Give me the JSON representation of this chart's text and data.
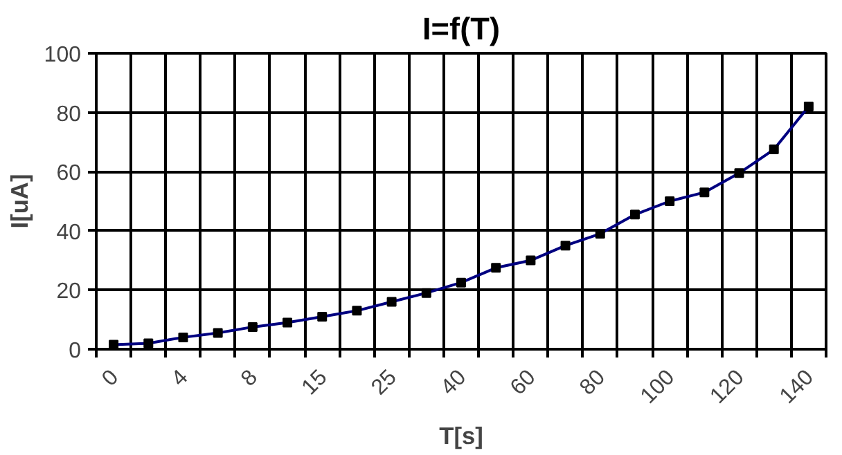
{
  "chart_data": {
    "type": "line",
    "title": "I=f(T)",
    "xlabel": "T[s]",
    "ylabel": "I[uA]",
    "categories": [
      "0",
      null,
      "4",
      null,
      "8",
      null,
      "15",
      null,
      "25",
      null,
      "40",
      null,
      "60",
      null,
      "80",
      null,
      "100",
      null,
      "120",
      null,
      "140"
    ],
    "series": [
      {
        "color": "#000080",
        "values": [
          1.5,
          2,
          4,
          5.5,
          7.5,
          9,
          11,
          13,
          16,
          19,
          22.5,
          27.5,
          30,
          35,
          39,
          45.5,
          50,
          53,
          59.5,
          67.5,
          82
        ]
      }
    ],
    "ylim": [
      0,
      100
    ],
    "yticks": [
      0,
      20,
      40,
      60,
      80,
      100
    ],
    "grid": true,
    "marker": "square"
  }
}
